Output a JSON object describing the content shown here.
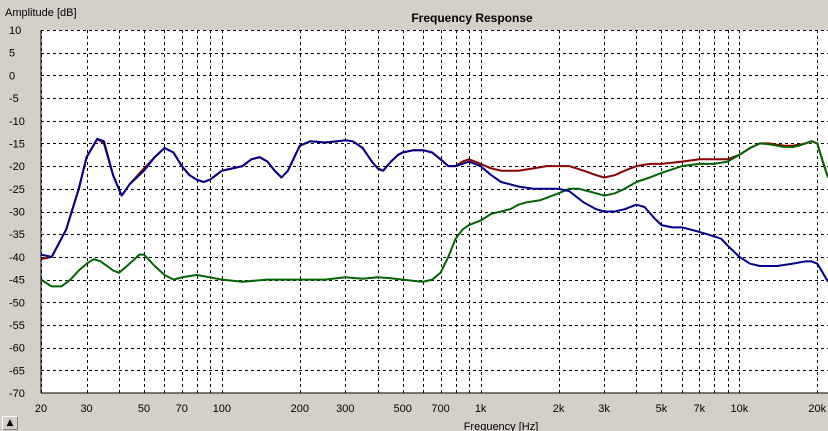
{
  "corner_button_glyph": "▲",
  "chart_data": {
    "type": "line",
    "title": "Frequency Response",
    "xlabel": "Frequency [Hz]",
    "ylabel": "Amplitude [dB]",
    "xscale": "log",
    "xlim": [
      20,
      22000
    ],
    "ylim": [
      -70,
      10
    ],
    "grid": true,
    "yticks": [
      10,
      5,
      0,
      -5,
      -10,
      -15,
      -20,
      -25,
      -30,
      -35,
      -40,
      -45,
      -50,
      -55,
      -60,
      -65,
      -70
    ],
    "xtick_labels": [
      {
        "value": 20,
        "label": "20"
      },
      {
        "value": 30,
        "label": "30"
      },
      {
        "value": 50,
        "label": "50"
      },
      {
        "value": 70,
        "label": "70"
      },
      {
        "value": 100,
        "label": "100"
      },
      {
        "value": 200,
        "label": "200"
      },
      {
        "value": 300,
        "label": "300"
      },
      {
        "value": 500,
        "label": "500"
      },
      {
        "value": 700,
        "label": "700"
      },
      {
        "value": 1000,
        "label": "1k"
      },
      {
        "value": 2000,
        "label": "2k"
      },
      {
        "value": 3000,
        "label": "3k"
      },
      {
        "value": 5000,
        "label": "5k"
      },
      {
        "value": 7000,
        "label": "7k"
      },
      {
        "value": 10000,
        "label": "10k"
      },
      {
        "value": 20000,
        "label": "20k"
      }
    ],
    "x_gridlines": [
      20,
      30,
      40,
      50,
      60,
      70,
      80,
      90,
      100,
      200,
      300,
      400,
      500,
      600,
      700,
      800,
      900,
      1000,
      2000,
      3000,
      4000,
      5000,
      6000,
      7000,
      8000,
      9000,
      10000,
      20000
    ],
    "series": [
      {
        "color": "#8b0000",
        "points": [
          [
            20,
            -40.5
          ],
          [
            22,
            -40
          ],
          [
            25,
            -34
          ],
          [
            28,
            -25
          ],
          [
            30,
            -18
          ],
          [
            33,
            -14
          ],
          [
            35,
            -15
          ],
          [
            38,
            -22
          ],
          [
            41,
            -26.5
          ],
          [
            44,
            -24
          ],
          [
            50,
            -20.5
          ],
          [
            55,
            -18
          ],
          [
            60,
            -16
          ],
          [
            65,
            -17
          ],
          [
            70,
            -20
          ],
          [
            75,
            -22
          ],
          [
            80,
            -23
          ],
          [
            85,
            -23.5
          ],
          [
            90,
            -23
          ],
          [
            100,
            -21
          ],
          [
            110,
            -20.5
          ],
          [
            120,
            -20
          ],
          [
            130,
            -18.5
          ],
          [
            140,
            -18
          ],
          [
            150,
            -19
          ],
          [
            160,
            -21
          ],
          [
            170,
            -22.5
          ],
          [
            180,
            -21
          ],
          [
            200,
            -15.5
          ],
          [
            220,
            -14.5
          ],
          [
            250,
            -14.8
          ],
          [
            280,
            -14.5
          ],
          [
            300,
            -14.3
          ],
          [
            320,
            -14.5
          ],
          [
            350,
            -16
          ],
          [
            380,
            -19
          ],
          [
            400,
            -20.5
          ],
          [
            420,
            -21
          ],
          [
            450,
            -19
          ],
          [
            480,
            -17.5
          ],
          [
            500,
            -17
          ],
          [
            550,
            -16.5
          ],
          [
            600,
            -16.5
          ],
          [
            650,
            -17
          ],
          [
            700,
            -18.5
          ],
          [
            750,
            -20
          ],
          [
            800,
            -20
          ],
          [
            850,
            -19
          ],
          [
            900,
            -18.5
          ],
          [
            950,
            -19
          ],
          [
            1000,
            -19.5
          ],
          [
            1100,
            -20.5
          ],
          [
            1200,
            -21
          ],
          [
            1400,
            -21
          ],
          [
            1600,
            -20.5
          ],
          [
            1800,
            -20
          ],
          [
            2000,
            -20
          ],
          [
            2200,
            -20
          ],
          [
            2500,
            -21
          ],
          [
            2800,
            -22
          ],
          [
            3000,
            -22.5
          ],
          [
            3300,
            -22
          ],
          [
            3600,
            -21
          ],
          [
            4000,
            -20
          ],
          [
            4500,
            -19.5
          ],
          [
            5000,
            -19.5
          ],
          [
            6000,
            -19
          ],
          [
            7000,
            -18.5
          ],
          [
            8000,
            -18.5
          ],
          [
            9000,
            -18.5
          ],
          [
            10000,
            -17.5
          ],
          [
            11000,
            -16
          ],
          [
            12000,
            -15
          ],
          [
            13000,
            -15
          ],
          [
            14000,
            -15.3
          ],
          [
            15000,
            -15.5
          ],
          [
            16000,
            -15.5
          ],
          [
            17000,
            -15.3
          ],
          [
            18000,
            -15
          ],
          [
            19000,
            -14.5
          ],
          [
            20000,
            -15
          ],
          [
            21000,
            -19
          ],
          [
            22000,
            -22.5
          ]
        ]
      },
      {
        "color": "#006400",
        "points": [
          [
            20,
            -45
          ],
          [
            22,
            -46.5
          ],
          [
            24,
            -46.5
          ],
          [
            26,
            -45
          ],
          [
            28,
            -43
          ],
          [
            30,
            -41.5
          ],
          [
            32,
            -40.5
          ],
          [
            34,
            -41
          ],
          [
            36,
            -42
          ],
          [
            38,
            -43
          ],
          [
            40,
            -43.5
          ],
          [
            43,
            -42
          ],
          [
            45,
            -41
          ],
          [
            48,
            -39.5
          ],
          [
            50,
            -39.5
          ],
          [
            55,
            -42
          ],
          [
            60,
            -44
          ],
          [
            65,
            -45
          ],
          [
            70,
            -44.5
          ],
          [
            80,
            -44
          ],
          [
            90,
            -44.5
          ],
          [
            100,
            -45
          ],
          [
            120,
            -45.5
          ],
          [
            150,
            -45
          ],
          [
            200,
            -45
          ],
          [
            250,
            -45
          ],
          [
            300,
            -44.5
          ],
          [
            350,
            -44.8
          ],
          [
            400,
            -44.5
          ],
          [
            450,
            -44.7
          ],
          [
            500,
            -45
          ],
          [
            550,
            -45.3
          ],
          [
            600,
            -45.5
          ],
          [
            650,
            -45
          ],
          [
            700,
            -43.5
          ],
          [
            750,
            -40
          ],
          [
            800,
            -36
          ],
          [
            850,
            -34
          ],
          [
            900,
            -33
          ],
          [
            1000,
            -32
          ],
          [
            1100,
            -30.5
          ],
          [
            1200,
            -30
          ],
          [
            1300,
            -29.5
          ],
          [
            1400,
            -28.5
          ],
          [
            1500,
            -28
          ],
          [
            1700,
            -27.5
          ],
          [
            2000,
            -26
          ],
          [
            2200,
            -25
          ],
          [
            2400,
            -25
          ],
          [
            2600,
            -25.5
          ],
          [
            2800,
            -26
          ],
          [
            3000,
            -26.5
          ],
          [
            3300,
            -26
          ],
          [
            3600,
            -25
          ],
          [
            4000,
            -23.5
          ],
          [
            4500,
            -22.5
          ],
          [
            5000,
            -21.5
          ],
          [
            6000,
            -20
          ],
          [
            7000,
            -19.5
          ],
          [
            8000,
            -19.5
          ],
          [
            9000,
            -19
          ],
          [
            10000,
            -17.5
          ],
          [
            11000,
            -16
          ],
          [
            12000,
            -15
          ],
          [
            13000,
            -15.2
          ],
          [
            14000,
            -15.5
          ],
          [
            15000,
            -15.8
          ],
          [
            16000,
            -15.8
          ],
          [
            17000,
            -15.5
          ],
          [
            18000,
            -15
          ],
          [
            19000,
            -14.5
          ],
          [
            20000,
            -15
          ],
          [
            21000,
            -19
          ],
          [
            22000,
            -22.5
          ]
        ]
      },
      {
        "color": "#00008b",
        "points": [
          [
            20,
            -39.5
          ],
          [
            22,
            -40
          ],
          [
            25,
            -34
          ],
          [
            28,
            -25
          ],
          [
            30,
            -18
          ],
          [
            33,
            -14
          ],
          [
            35,
            -14.5
          ],
          [
            38,
            -22
          ],
          [
            41,
            -26.5
          ],
          [
            44,
            -24
          ],
          [
            50,
            -21
          ],
          [
            55,
            -18
          ],
          [
            60,
            -16
          ],
          [
            65,
            -17
          ],
          [
            70,
            -20
          ],
          [
            75,
            -22
          ],
          [
            80,
            -23
          ],
          [
            85,
            -23.5
          ],
          [
            90,
            -23
          ],
          [
            100,
            -21
          ],
          [
            110,
            -20.5
          ],
          [
            120,
            -20
          ],
          [
            130,
            -18.5
          ],
          [
            140,
            -18
          ],
          [
            150,
            -19
          ],
          [
            160,
            -21
          ],
          [
            170,
            -22.5
          ],
          [
            180,
            -21
          ],
          [
            200,
            -15.5
          ],
          [
            220,
            -14.5
          ],
          [
            250,
            -14.8
          ],
          [
            280,
            -14.5
          ],
          [
            300,
            -14.3
          ],
          [
            320,
            -14.5
          ],
          [
            350,
            -16
          ],
          [
            380,
            -19
          ],
          [
            400,
            -20.5
          ],
          [
            420,
            -21
          ],
          [
            450,
            -19
          ],
          [
            480,
            -17.5
          ],
          [
            500,
            -17
          ],
          [
            550,
            -16.5
          ],
          [
            600,
            -16.5
          ],
          [
            650,
            -17
          ],
          [
            700,
            -18.5
          ],
          [
            750,
            -20
          ],
          [
            800,
            -20
          ],
          [
            850,
            -19.5
          ],
          [
            900,
            -19
          ],
          [
            950,
            -19.5
          ],
          [
            1000,
            -20
          ],
          [
            1100,
            -22
          ],
          [
            1200,
            -23.5
          ],
          [
            1400,
            -24.5
          ],
          [
            1600,
            -25
          ],
          [
            2000,
            -25
          ],
          [
            2200,
            -25.5
          ],
          [
            2500,
            -28
          ],
          [
            2800,
            -29.5
          ],
          [
            3000,
            -30
          ],
          [
            3300,
            -30
          ],
          [
            3600,
            -29.5
          ],
          [
            4000,
            -28.5
          ],
          [
            4300,
            -29
          ],
          [
            4700,
            -31.5
          ],
          [
            5000,
            -33
          ],
          [
            5500,
            -33.5
          ],
          [
            6000,
            -33.5
          ],
          [
            6500,
            -34
          ],
          [
            7000,
            -34.5
          ],
          [
            7500,
            -35
          ],
          [
            8000,
            -35.5
          ],
          [
            8500,
            -36
          ],
          [
            9000,
            -37.5
          ],
          [
            10000,
            -40
          ],
          [
            11000,
            -41.5
          ],
          [
            12000,
            -42
          ],
          [
            14000,
            -42
          ],
          [
            16000,
            -41.5
          ],
          [
            18000,
            -41
          ],
          [
            19000,
            -41
          ],
          [
            20000,
            -41.5
          ],
          [
            21000,
            -43.5
          ],
          [
            22000,
            -45.5
          ]
        ]
      }
    ]
  }
}
